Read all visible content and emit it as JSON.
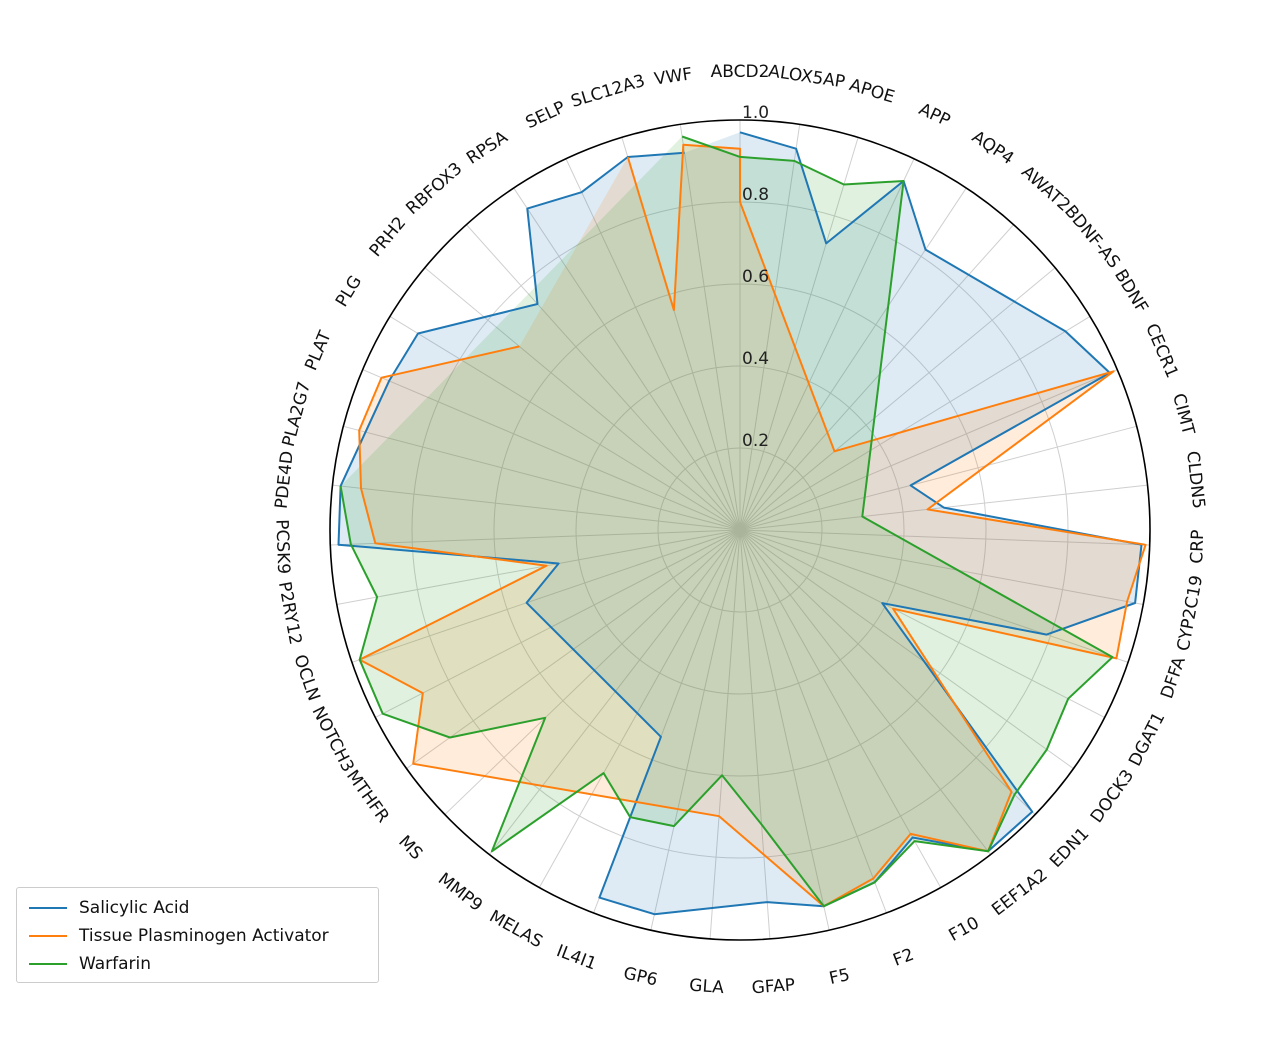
{
  "chart_data": {
    "type": "radar",
    "categories": [
      "ABCD2",
      "ALOX5AP",
      "APOE",
      "APP",
      "AQP4",
      "AWAT2",
      "BDNF-AS",
      "BDNF",
      "CECR1",
      "CIMT",
      "CLDN5",
      "CRP",
      "CYP2C19",
      "DFFA",
      "DGAT1",
      "DOCK3",
      "EDN1",
      "EEF1A2",
      "F10",
      "F2",
      "F5",
      "GFAP",
      "GLA",
      "GP6",
      "IL4I1",
      "MELAS",
      "MMP9",
      "MS",
      "MTHFR",
      "NOTCH3",
      "OCLN",
      "P2RY12",
      "PCSK9",
      "PDE4D",
      "PLA2G7",
      "PLAT",
      "PLG",
      "PRH2",
      "RBFOX3",
      "RPSA",
      "SELP",
      "SLC12A3",
      "VWF"
    ],
    "rlim": [
      0,
      1.0
    ],
    "r_ticks": [
      "0.2",
      "0.4",
      "0.6",
      "0.8",
      "1.0"
    ],
    "r_tick_values": [
      0.2,
      0.4,
      0.6,
      0.8,
      1.0
    ],
    "grid": true,
    "legend_position": "lower-left",
    "series": [
      {
        "name": "Salicylic Acid",
        "color": "#1f77b4",
        "points": [
          [
            0,
            0.97
          ],
          [
            1,
            0.94
          ],
          [
            2,
            0.73
          ],
          [
            3,
            0.94
          ],
          [
            4,
            0.82
          ],
          [
            7,
            0.93
          ],
          [
            8,
            0.98
          ],
          [
            9,
            0.43
          ],
          [
            10,
            0.5
          ],
          [
            11,
            0.98
          ],
          [
            12,
            0.98
          ],
          [
            13,
            0.79
          ],
          [
            14,
            0.39
          ],
          [
            16,
            0.99
          ],
          [
            17,
            0.99
          ],
          [
            18,
            0.86
          ],
          [
            19,
            0.92
          ],
          [
            20,
            0.94
          ],
          [
            21,
            0.91
          ],
          [
            23,
            0.96
          ],
          [
            24,
            0.96
          ],
          [
            24,
            0.54
          ],
          [
            30,
            0.55
          ],
          [
            31,
            0.45
          ],
          [
            32,
            0.98
          ],
          [
            33,
            0.98
          ],
          [
            35,
            0.93
          ],
          [
            36,
            0.92
          ],
          [
            38,
            0.74
          ],
          [
            39,
            0.94
          ],
          [
            40,
            0.91
          ],
          [
            41,
            0.95
          ],
          [
            42,
            0.93
          ]
        ]
      },
      {
        "name": "Tissue Plasminogen Activator",
        "color": "#ff7f0e",
        "points": [
          [
            41,
            0.95
          ],
          [
            41,
            0.56
          ],
          [
            42,
            0.95
          ],
          [
            0,
            0.93
          ],
          [
            0,
            0.8
          ],
          [
            6,
            0.3
          ],
          [
            8,
            0.99
          ],
          [
            10,
            0.46
          ],
          [
            11,
            0.99
          ],
          [
            12,
            0.96
          ],
          [
            13,
            0.97
          ],
          [
            14,
            0.42
          ],
          [
            16,
            0.92
          ],
          [
            17,
            0.99
          ],
          [
            18,
            0.85
          ],
          [
            19,
            0.91
          ],
          [
            20,
            0.94
          ],
          [
            22,
            0.7
          ],
          [
            28,
            0.98
          ],
          [
            29,
            0.87
          ],
          [
            30,
            0.98
          ],
          [
            31,
            0.48
          ],
          [
            32,
            0.89
          ],
          [
            33,
            0.93
          ],
          [
            34,
            0.96
          ],
          [
            35,
            0.95
          ],
          [
            37,
            0.7
          ]
        ]
      },
      {
        "name": "Warfarin",
        "color": "#2ca02c",
        "points": [
          [
            42,
            0.97
          ],
          [
            0,
            0.91
          ],
          [
            1,
            0.91
          ],
          [
            2,
            0.88
          ],
          [
            3,
            0.94
          ],
          [
            10,
            0.3
          ],
          [
            13,
            0.96
          ],
          [
            14,
            0.9
          ],
          [
            15,
            0.92
          ],
          [
            16,
            0.93
          ],
          [
            17,
            0.99
          ],
          [
            18,
            0.87
          ],
          [
            19,
            0.92
          ],
          [
            20,
            0.94
          ],
          [
            21,
            0.72
          ],
          [
            22,
            0.6
          ],
          [
            23,
            0.74
          ],
          [
            24,
            0.75
          ],
          [
            25,
            0.68
          ],
          [
            26,
            0.99
          ],
          [
            27,
            0.66
          ],
          [
            28,
            0.87
          ],
          [
            29,
            0.98
          ],
          [
            30,
            0.98
          ],
          [
            31,
            0.9
          ],
          [
            32,
            0.95
          ],
          [
            33,
            0.98
          ]
        ]
      }
    ]
  }
}
